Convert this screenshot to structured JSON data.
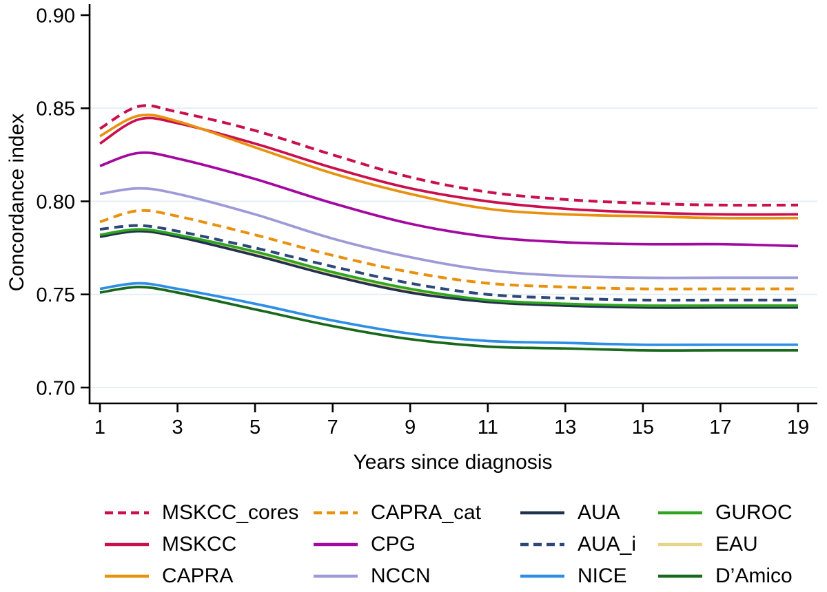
{
  "figure_title": "",
  "colors": {
    "background": "#ffffff",
    "axis": "#000000",
    "gridline": "#e3eef4"
  },
  "chart_data": {
    "type": "line",
    "title": "",
    "xlabel": "Years since diagnosis",
    "ylabel": "Concordance index",
    "xlim": [
      1,
      19
    ],
    "ylim": [
      0.7,
      0.9
    ],
    "grid": "horizontal-light",
    "legend_position": "bottom",
    "legend_columns": 4,
    "x_ticks": [
      {
        "v": 1,
        "label": "1"
      },
      {
        "v": 3,
        "label": "3"
      },
      {
        "v": 5,
        "label": "5"
      },
      {
        "v": 7,
        "label": "7"
      },
      {
        "v": 9,
        "label": "9"
      },
      {
        "v": 11,
        "label": "11"
      },
      {
        "v": 13,
        "label": "13"
      },
      {
        "v": 15,
        "label": "15"
      },
      {
        "v": 17,
        "label": "17"
      },
      {
        "v": 19,
        "label": "19"
      }
    ],
    "y_ticks": [
      {
        "v": 0.9,
        "label": "0.90"
      },
      {
        "v": 0.85,
        "label": "0.85"
      },
      {
        "v": 0.8,
        "label": "0.80"
      },
      {
        "v": 0.75,
        "label": "0.75"
      },
      {
        "v": 0.7,
        "label": "0.70"
      }
    ],
    "grid_y": [
      0.85,
      0.8,
      0.75,
      0.7
    ],
    "x": [
      1,
      2,
      3,
      5,
      7,
      9,
      11,
      13,
      15,
      17,
      19
    ],
    "series": [
      {
        "name": "MSKCC_cores",
        "color": "#C9104C",
        "dash": true,
        "z": 1,
        "values": [
          0.839,
          0.851,
          0.848,
          0.838,
          0.825,
          0.813,
          0.805,
          0.801,
          0.799,
          0.798,
          0.798
        ]
      },
      {
        "name": "MSKCC",
        "color": "#C9104C",
        "dash": false,
        "z": 1,
        "values": [
          0.831,
          0.844,
          0.842,
          0.831,
          0.818,
          0.807,
          0.8,
          0.796,
          0.794,
          0.793,
          0.793
        ]
      },
      {
        "name": "CAPRA",
        "color": "#E8910F",
        "dash": false,
        "z": 1,
        "values": [
          0.835,
          0.846,
          0.843,
          0.829,
          0.815,
          0.804,
          0.796,
          0.793,
          0.792,
          0.791,
          0.791
        ]
      },
      {
        "name": "CAPRA_cat",
        "color": "#E8910F",
        "dash": true,
        "z": 1,
        "values": [
          0.789,
          0.795,
          0.792,
          0.782,
          0.771,
          0.762,
          0.756,
          0.754,
          0.753,
          0.753,
          0.753
        ]
      },
      {
        "name": "CPG",
        "color": "#A309A0",
        "dash": false,
        "z": 1,
        "values": [
          0.819,
          0.826,
          0.823,
          0.812,
          0.799,
          0.788,
          0.781,
          0.778,
          0.777,
          0.777,
          0.776
        ]
      },
      {
        "name": "NCCN",
        "color": "#9E9AD8",
        "dash": false,
        "z": 1,
        "values": [
          0.804,
          0.807,
          0.804,
          0.793,
          0.78,
          0.77,
          0.763,
          0.76,
          0.759,
          0.759,
          0.759
        ]
      },
      {
        "name": "AUA",
        "color": "#223050",
        "dash": false,
        "z": 1,
        "values": [
          0.781,
          0.784,
          0.781,
          0.771,
          0.76,
          0.751,
          0.746,
          0.744,
          0.743,
          0.743,
          0.743
        ]
      },
      {
        "name": "AUA_i",
        "color": "#2C4778",
        "dash": true,
        "z": 2,
        "values": [
          0.785,
          0.787,
          0.784,
          0.775,
          0.765,
          0.756,
          0.75,
          0.748,
          0.747,
          0.747,
          0.747
        ]
      },
      {
        "name": "NICE",
        "color": "#2E8EE5",
        "dash": false,
        "z": 1,
        "values": [
          0.753,
          0.756,
          0.753,
          0.745,
          0.736,
          0.729,
          0.725,
          0.724,
          0.723,
          0.723,
          0.723
        ]
      },
      {
        "name": "GUROC",
        "color": "#2DA51F",
        "dash": false,
        "z": 1,
        "values": [
          0.782,
          0.785,
          0.782,
          0.773,
          0.762,
          0.753,
          0.747,
          0.745,
          0.744,
          0.744,
          0.744
        ]
      },
      {
        "name": "EAU",
        "color": "#E7D48C",
        "dash": false,
        "z": 0,
        "values": [
          0.781,
          0.784,
          0.781,
          0.772,
          0.761,
          0.752,
          0.746,
          0.744,
          0.744,
          0.744,
          0.744
        ]
      },
      {
        "name": "D’Amico",
        "color": "#19691C",
        "dash": false,
        "z": 1,
        "values": [
          0.751,
          0.754,
          0.751,
          0.742,
          0.733,
          0.726,
          0.722,
          0.721,
          0.72,
          0.72,
          0.72
        ]
      }
    ]
  }
}
